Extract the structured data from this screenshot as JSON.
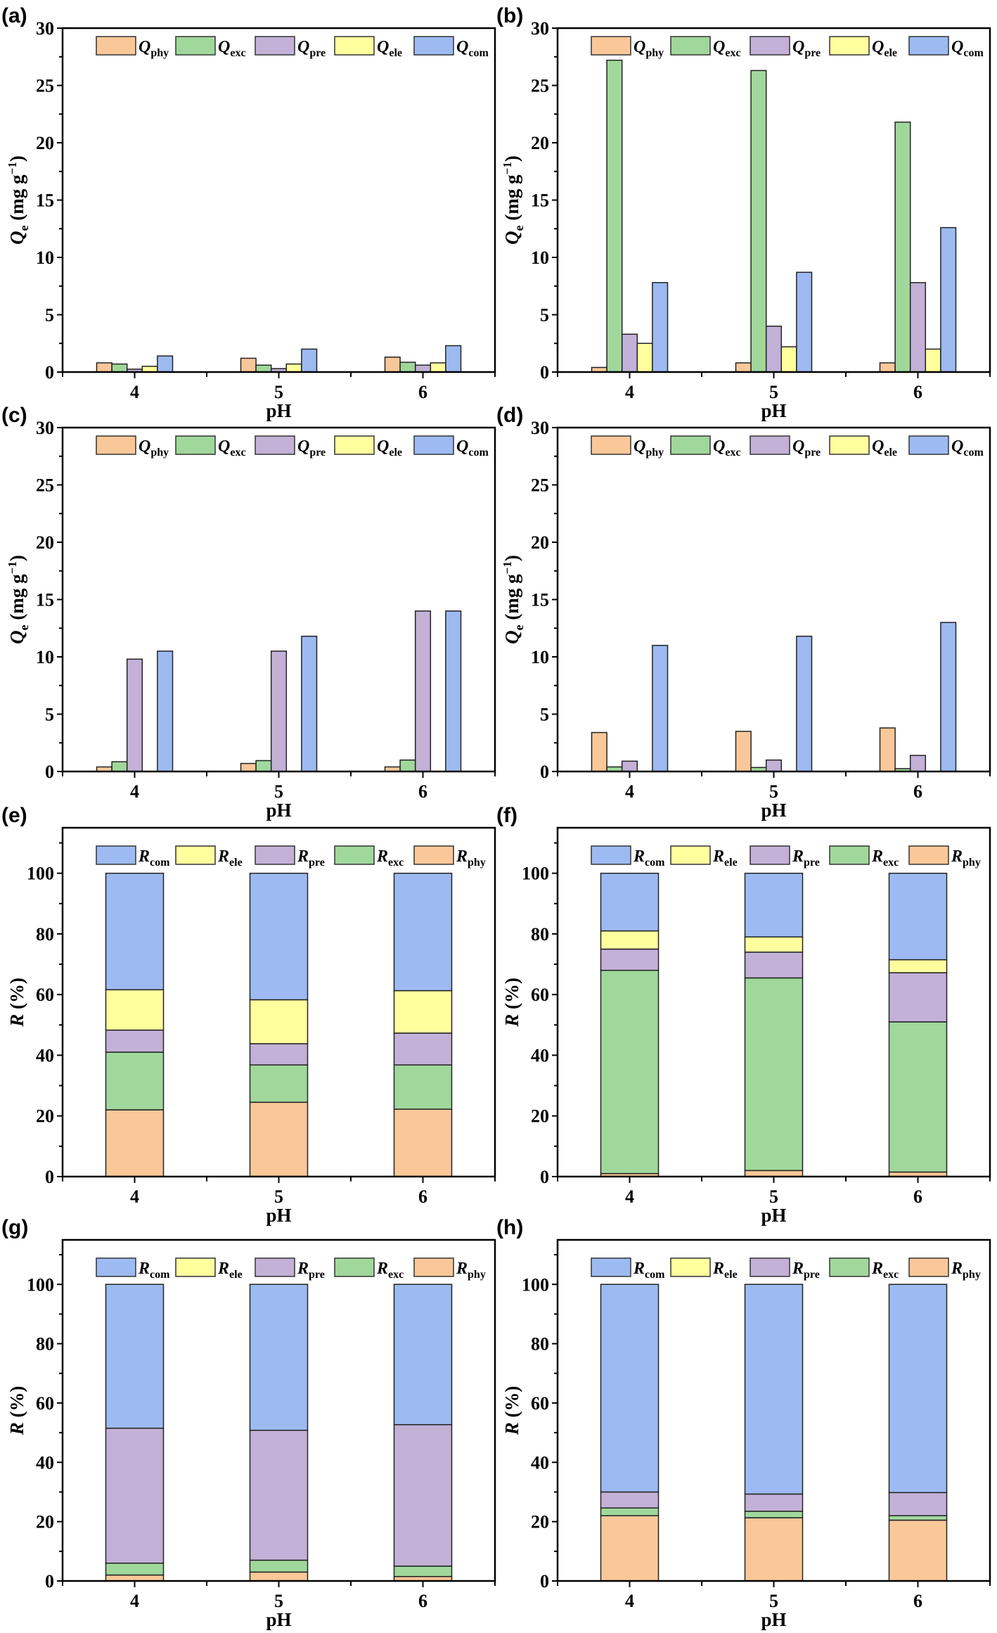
{
  "colors": {
    "phy": "#FAC898",
    "exc": "#A0D89C",
    "pre": "#C3B1D8",
    "ele": "#FFFF9E",
    "com": "#9DBBF2"
  },
  "chart_data": [
    {
      "panel": "(a)",
      "type": "bar",
      "xlabel": "pH",
      "ylabel": {
        "sym": "Q",
        "sub": "e",
        "unit": " (mg g",
        "sup": "−1",
        "close": ")"
      },
      "ylim": [
        0,
        30
      ],
      "categories": [
        "4",
        "5",
        "6"
      ],
      "legend": "top-right",
      "series": [
        {
          "key": "phy",
          "sym": "Q",
          "sub": "phy",
          "values": [
            0.8,
            1.2,
            1.3
          ]
        },
        {
          "key": "exc",
          "sym": "Q",
          "sub": "exc",
          "values": [
            0.7,
            0.6,
            0.85
          ]
        },
        {
          "key": "pre",
          "sym": "Q",
          "sub": "pre",
          "values": [
            0.25,
            0.3,
            0.6
          ]
        },
        {
          "key": "ele",
          "sym": "Q",
          "sub": "ele",
          "values": [
            0.5,
            0.7,
            0.8
          ]
        },
        {
          "key": "com",
          "sym": "Q",
          "sub": "com",
          "values": [
            1.4,
            2.0,
            2.3
          ]
        }
      ]
    },
    {
      "panel": "(b)",
      "type": "bar",
      "xlabel": "pH",
      "ylabel": {
        "sym": "Q",
        "sub": "e",
        "unit": " (mg g",
        "sup": "−1",
        "close": ")"
      },
      "ylim": [
        0,
        30
      ],
      "categories": [
        "4",
        "5",
        "6"
      ],
      "legend": "top-right",
      "series": [
        {
          "key": "phy",
          "sym": "Q",
          "sub": "phy",
          "values": [
            0.4,
            0.8,
            0.8
          ]
        },
        {
          "key": "exc",
          "sym": "Q",
          "sub": "exc",
          "values": [
            27.2,
            26.3,
            21.8
          ]
        },
        {
          "key": "pre",
          "sym": "Q",
          "sub": "pre",
          "values": [
            3.3,
            4.0,
            7.8
          ]
        },
        {
          "key": "ele",
          "sym": "Q",
          "sub": "ele",
          "values": [
            2.5,
            2.2,
            2.0
          ]
        },
        {
          "key": "com",
          "sym": "Q",
          "sub": "com",
          "values": [
            7.8,
            8.7,
            12.6
          ]
        }
      ]
    },
    {
      "panel": "(c)",
      "type": "bar",
      "xlabel": "pH",
      "ylabel": {
        "sym": "Q",
        "sub": "e",
        "unit": " (mg g",
        "sup": "−1",
        "close": ")"
      },
      "ylim": [
        0,
        30
      ],
      "categories": [
        "4",
        "5",
        "6"
      ],
      "legend": "top-right",
      "series": [
        {
          "key": "phy",
          "sym": "Q",
          "sub": "phy",
          "values": [
            0.4,
            0.7,
            0.4
          ]
        },
        {
          "key": "exc",
          "sym": "Q",
          "sub": "exc",
          "values": [
            0.85,
            0.95,
            1.0
          ]
        },
        {
          "key": "pre",
          "sym": "Q",
          "sub": "pre",
          "values": [
            9.8,
            10.5,
            14.0
          ]
        },
        {
          "key": "ele",
          "sym": "Q",
          "sub": "ele",
          "values": [
            0,
            0,
            0
          ]
        },
        {
          "key": "com",
          "sym": "Q",
          "sub": "com",
          "values": [
            10.5,
            11.8,
            14.0
          ]
        }
      ]
    },
    {
      "panel": "(d)",
      "type": "bar",
      "xlabel": "pH",
      "ylabel": {
        "sym": "Q",
        "sub": "e",
        "unit": " (mg g",
        "sup": "−1",
        "close": ")"
      },
      "ylim": [
        0,
        30
      ],
      "categories": [
        "4",
        "5",
        "6"
      ],
      "legend": "top-right",
      "series": [
        {
          "key": "phy",
          "sym": "Q",
          "sub": "phy",
          "values": [
            3.4,
            3.5,
            3.8
          ]
        },
        {
          "key": "exc",
          "sym": "Q",
          "sub": "exc",
          "values": [
            0.4,
            0.35,
            0.25
          ]
        },
        {
          "key": "pre",
          "sym": "Q",
          "sub": "pre",
          "values": [
            0.9,
            1.0,
            1.4
          ]
        },
        {
          "key": "ele",
          "sym": "Q",
          "sub": "ele",
          "values": [
            0,
            0,
            0
          ]
        },
        {
          "key": "com",
          "sym": "Q",
          "sub": "com",
          "values": [
            11.0,
            11.8,
            13.0
          ]
        }
      ]
    },
    {
      "panel": "(e)",
      "type": "stacked-bar",
      "xlabel": "pH",
      "ylabel": {
        "sym": "R",
        "sub": "",
        "unit": " (%)",
        "sup": "",
        "close": ""
      },
      "ylim": [
        0,
        115
      ],
      "categories": [
        "4",
        "5",
        "6"
      ],
      "legend": "top-right",
      "series": [
        {
          "key": "phy",
          "sym": "R",
          "sub": "phy",
          "values": [
            22,
            24.5,
            22.2
          ]
        },
        {
          "key": "exc",
          "sym": "R",
          "sub": "exc",
          "values": [
            19,
            12.3,
            14.6
          ]
        },
        {
          "key": "pre",
          "sym": "R",
          "sub": "pre",
          "values": [
            7.3,
            7,
            10.5
          ]
        },
        {
          "key": "ele",
          "sym": "R",
          "sub": "ele",
          "values": [
            13.3,
            14.5,
            14
          ]
        },
        {
          "key": "com",
          "sym": "R",
          "sub": "com",
          "values": [
            38.4,
            41.7,
            38.7
          ]
        }
      ]
    },
    {
      "panel": "(f)",
      "type": "stacked-bar",
      "xlabel": "pH",
      "ylabel": {
        "sym": "R",
        "sub": "",
        "unit": " (%)",
        "sup": "",
        "close": ""
      },
      "ylim": [
        0,
        115
      ],
      "categories": [
        "4",
        "5",
        "6"
      ],
      "legend": "top-right",
      "series": [
        {
          "key": "phy",
          "sym": "R",
          "sub": "phy",
          "values": [
            1,
            2,
            1.5
          ]
        },
        {
          "key": "exc",
          "sym": "R",
          "sub": "exc",
          "values": [
            67,
            63.5,
            49.5
          ]
        },
        {
          "key": "pre",
          "sym": "R",
          "sub": "pre",
          "values": [
            7,
            8.5,
            16.2
          ]
        },
        {
          "key": "ele",
          "sym": "R",
          "sub": "ele",
          "values": [
            6,
            5,
            4.3
          ]
        },
        {
          "key": "com",
          "sym": "R",
          "sub": "com",
          "values": [
            19,
            21,
            28.5
          ]
        }
      ]
    },
    {
      "panel": "(g)",
      "type": "stacked-bar",
      "xlabel": "pH",
      "ylabel": {
        "sym": "R",
        "sub": "",
        "unit": " (%)",
        "sup": "",
        "close": ""
      },
      "ylim": [
        0,
        115
      ],
      "categories": [
        "4",
        "5",
        "6"
      ],
      "legend": "top-right",
      "series": [
        {
          "key": "phy",
          "sym": "R",
          "sub": "phy",
          "values": [
            2,
            3,
            1.5
          ]
        },
        {
          "key": "exc",
          "sym": "R",
          "sub": "exc",
          "values": [
            4,
            4,
            3.5
          ]
        },
        {
          "key": "pre",
          "sym": "R",
          "sub": "pre",
          "values": [
            45.5,
            43.8,
            47.7
          ]
        },
        {
          "key": "ele",
          "sym": "R",
          "sub": "ele",
          "values": [
            0,
            0,
            0
          ]
        },
        {
          "key": "com",
          "sym": "R",
          "sub": "com",
          "values": [
            48.5,
            49.2,
            47.3
          ]
        }
      ]
    },
    {
      "panel": "(h)",
      "type": "stacked-bar",
      "xlabel": "pH",
      "ylabel": {
        "sym": "R",
        "sub": "",
        "unit": " (%)",
        "sup": "",
        "close": ""
      },
      "ylim": [
        0,
        115
      ],
      "categories": [
        "4",
        "5",
        "6"
      ],
      "legend": "top-right",
      "series": [
        {
          "key": "phy",
          "sym": "R",
          "sub": "phy",
          "values": [
            22,
            21.3,
            20.5
          ]
        },
        {
          "key": "exc",
          "sym": "R",
          "sub": "exc",
          "values": [
            2.6,
            2.2,
            1.5
          ]
        },
        {
          "key": "pre",
          "sym": "R",
          "sub": "pre",
          "values": [
            5.4,
            5.8,
            7.8
          ]
        },
        {
          "key": "ele",
          "sym": "R",
          "sub": "ele",
          "values": [
            0,
            0,
            0
          ]
        },
        {
          "key": "com",
          "sym": "R",
          "sub": "com",
          "values": [
            70,
            70.7,
            70.2
          ]
        }
      ]
    }
  ]
}
